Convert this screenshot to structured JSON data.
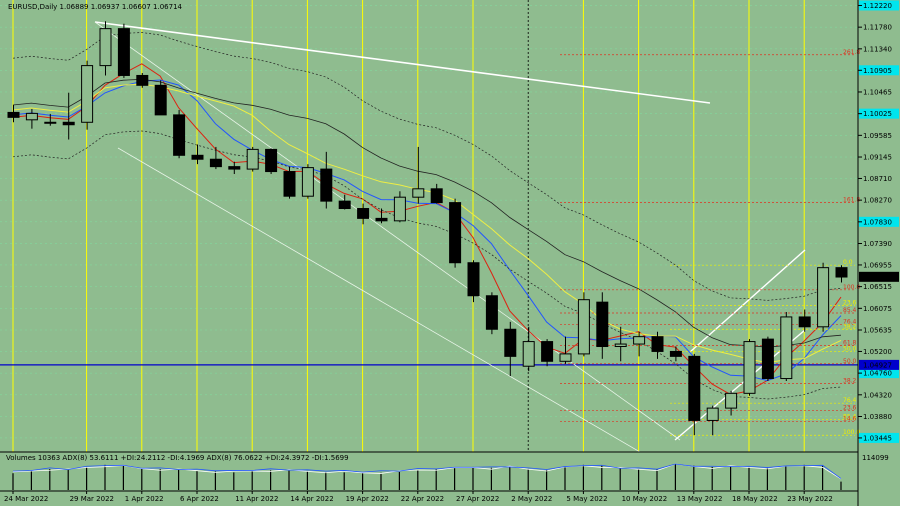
{
  "header": {
    "symbol_text": "EURUSD,Daily  1.06889 1.06937 1.06607 1.06714"
  },
  "volume_panel": {
    "label": "Volumes 10363  ADX(8) 53.6111 +DI:24.2112 -DI:4.1969  ADX(8) 76.0622 +DI:24.3972 -DI:1.5699",
    "top_value": "114099"
  },
  "colors": {
    "background": "#8fbc8f",
    "bull_candle": "#8fbc8f",
    "bear_candle": "#000000",
    "vertical_line": "#ffff00",
    "grid": "#7fe0a0",
    "highlight_label": "#00e5ee",
    "current_price_bg": "#000000",
    "horizontal_level": "#0000cc",
    "ma_blue": "#2255ff",
    "ma_red": "#dd2211",
    "ma_yellow": "#eeee44",
    "ma_black": "#222222",
    "fib_red": "#dd3322",
    "fib_yellow": "#eeee00",
    "trendline_white": "#ffffff"
  },
  "chart_data": {
    "type": "candlestick",
    "title": "EURUSD,Daily",
    "ohlc_header": [
      1.06889,
      1.06937,
      1.06607,
      1.06714
    ],
    "ylim": [
      1.032,
      1.1225
    ],
    "y_ticks": [
      "1.12220",
      "1.11780",
      "1.11340",
      "1.10905",
      "1.10465",
      "1.10025",
      "1.09585",
      "1.09145",
      "1.08710",
      "1.08270",
      "1.07830",
      "1.07390",
      "1.06955",
      "1.06515",
      "1.06075",
      "1.05635",
      "1.05200",
      "1.04760",
      "1.04320",
      "1.03880",
      "1.03445"
    ],
    "highlighted_ticks": [
      "1.12220",
      "1.10905",
      "1.10025",
      "1.07830",
      "1.04760",
      "1.03445"
    ],
    "current_price": "1.06714",
    "level_price": "1.04927",
    "x_labels": [
      "24 Mar 2022",
      "29 Mar 2022",
      "1 Apr 2022",
      "6 Apr 2022",
      "11 Apr 2022",
      "14 Apr 2022",
      "19 Apr 2022",
      "22 Apr 2022",
      "27 Apr 2022",
      "2 May 2022",
      "5 May 2022",
      "10 May 2022",
      "13 May 2022",
      "18 May 2022",
      "23 May 2022"
    ],
    "x_label_index": [
      0,
      4,
      7,
      10,
      13,
      16,
      19,
      22,
      25,
      28,
      31,
      34,
      37,
      40,
      43
    ],
    "candles": [
      {
        "o": 1.1005,
        "h": 1.102,
        "l": 1.0985,
        "c": 1.0995
      },
      {
        "o": 1.099,
        "h": 1.1012,
        "l": 1.0972,
        "c": 1.1003
      },
      {
        "o": 1.0985,
        "h": 1.1002,
        "l": 1.0978,
        "c": 1.0985
      },
      {
        "o": 1.0985,
        "h": 1.1045,
        "l": 1.095,
        "c": 1.098
      },
      {
        "o": 1.0985,
        "h": 1.111,
        "l": 1.097,
        "c": 1.11
      },
      {
        "o": 1.11,
        "h": 1.119,
        "l": 1.108,
        "c": 1.1175
      },
      {
        "o": 1.1175,
        "h": 1.1185,
        "l": 1.1075,
        "c": 1.108
      },
      {
        "o": 1.108,
        "h": 1.1085,
        "l": 1.1055,
        "c": 1.106
      },
      {
        "o": 1.106,
        "h": 1.107,
        "l": 1.1,
        "c": 1.1
      },
      {
        "o": 1.1,
        "h": 1.101,
        "l": 1.0912,
        "c": 1.0918
      },
      {
        "o": 1.0918,
        "h": 1.094,
        "l": 1.09,
        "c": 1.091
      },
      {
        "o": 1.091,
        "h": 1.0935,
        "l": 1.089,
        "c": 1.0895
      },
      {
        "o": 1.0895,
        "h": 1.0905,
        "l": 1.088,
        "c": 1.089
      },
      {
        "o": 1.089,
        "h": 1.0935,
        "l": 1.0885,
        "c": 1.093
      },
      {
        "o": 1.093,
        "h": 1.0932,
        "l": 1.088,
        "c": 1.0885
      },
      {
        "o": 1.0885,
        "h": 1.0895,
        "l": 1.083,
        "c": 1.0835
      },
      {
        "o": 1.0835,
        "h": 1.09,
        "l": 1.083,
        "c": 1.0893
      },
      {
        "o": 1.089,
        "h": 1.0925,
        "l": 1.081,
        "c": 1.0825
      },
      {
        "o": 1.0825,
        "h": 1.0838,
        "l": 1.0808,
        "c": 1.081
      },
      {
        "o": 1.081,
        "h": 1.082,
        "l": 1.0778,
        "c": 1.079
      },
      {
        "o": 1.079,
        "h": 1.081,
        "l": 1.078,
        "c": 1.0785
      },
      {
        "o": 1.0785,
        "h": 1.0845,
        "l": 1.0782,
        "c": 1.0833
      },
      {
        "o": 1.0833,
        "h": 1.0935,
        "l": 1.082,
        "c": 1.085
      },
      {
        "o": 1.085,
        "h": 1.086,
        "l": 1.082,
        "c": 1.0822
      },
      {
        "o": 1.0822,
        "h": 1.083,
        "l": 1.069,
        "c": 1.07
      },
      {
        "o": 1.07,
        "h": 1.0705,
        "l": 1.062,
        "c": 1.0633
      },
      {
        "o": 1.0633,
        "h": 1.064,
        "l": 1.0555,
        "c": 1.0565
      },
      {
        "o": 1.0565,
        "h": 1.058,
        "l": 1.047,
        "c": 1.051
      },
      {
        "o": 1.049,
        "h": 1.057,
        "l": 1.048,
        "c": 1.054
      },
      {
        "o": 1.054,
        "h": 1.0545,
        "l": 1.049,
        "c": 1.05
      },
      {
        "o": 1.05,
        "h": 1.055,
        "l": 1.0495,
        "c": 1.0515
      },
      {
        "o": 1.0515,
        "h": 1.064,
        "l": 1.051,
        "c": 1.0625
      },
      {
        "o": 1.062,
        "h": 1.064,
        "l": 1.0505,
        "c": 1.053
      },
      {
        "o": 1.053,
        "h": 1.057,
        "l": 1.05,
        "c": 1.0535
      },
      {
        "o": 1.0535,
        "h": 1.056,
        "l": 1.051,
        "c": 1.055
      },
      {
        "o": 1.055,
        "h": 1.056,
        "l": 1.0505,
        "c": 1.052
      },
      {
        "o": 1.052,
        "h": 1.053,
        "l": 1.05,
        "c": 1.051
      },
      {
        "o": 1.051,
        "h": 1.0515,
        "l": 1.035,
        "c": 1.038
      },
      {
        "o": 1.038,
        "h": 1.041,
        "l": 1.035,
        "c": 1.0405
      },
      {
        "o": 1.0405,
        "h": 1.044,
        "l": 1.039,
        "c": 1.0435
      },
      {
        "o": 1.0435,
        "h": 1.0545,
        "l": 1.043,
        "c": 1.054
      },
      {
        "o": 1.0545,
        "h": 1.055,
        "l": 1.046,
        "c": 1.0465
      },
      {
        "o": 1.0465,
        "h": 1.06,
        "l": 1.046,
        "c": 1.059
      },
      {
        "o": 1.059,
        "h": 1.0605,
        "l": 1.056,
        "c": 1.057
      },
      {
        "o": 1.057,
        "h": 1.07,
        "l": 1.056,
        "c": 1.069
      },
      {
        "o": 1.069,
        "h": 1.0695,
        "l": 1.066,
        "c": 1.0671
      }
    ],
    "volumes": [
      40,
      45,
      50,
      48,
      55,
      60,
      58,
      52,
      50,
      48,
      46,
      44,
      42,
      45,
      47,
      46,
      44,
      43,
      42,
      40,
      41,
      43,
      48,
      50,
      52,
      55,
      53,
      56,
      50,
      48,
      54,
      60,
      58,
      52,
      50,
      49,
      62,
      58,
      55,
      57,
      55,
      54,
      56,
      60,
      58,
      20
    ],
    "fib_levels": [
      {
        "label": "261.8",
        "price": 1.1122,
        "color": "red"
      },
      {
        "label": "161.8",
        "price": 1.0822,
        "color": "red"
      },
      {
        "label": "0.0",
        "price": 1.0695,
        "color": "yellow"
      },
      {
        "label": "100.0",
        "price": 1.0645,
        "color": "red"
      },
      {
        "label": "23.6",
        "price": 1.0613,
        "color": "yellow"
      },
      {
        "label": "85.4",
        "price": 1.0598,
        "color": "red"
      },
      {
        "label": "76.4",
        "price": 1.0575,
        "color": "red"
      },
      {
        "label": "38.2",
        "price": 1.0565,
        "color": "yellow"
      },
      {
        "label": "61.8",
        "price": 1.0532,
        "color": "red"
      },
      {
        "label": "50.0",
        "price": 1.052,
        "color": "yellow"
      },
      {
        "label": "50.0",
        "price": 1.0495,
        "color": "red"
      },
      {
        "label": "38.2",
        "price": 1.0455,
        "color": "red"
      },
      {
        "label": "76.4",
        "price": 1.0415,
        "color": "yellow"
      },
      {
        "label": "23.6",
        "price": 1.04,
        "color": "red"
      },
      {
        "label": "85.4",
        "price": 1.0382,
        "color": "yellow"
      },
      {
        "label": "14.6",
        "price": 1.0378,
        "color": "red"
      },
      {
        "label": "100.0",
        "price": 1.035,
        "color": "yellow"
      }
    ]
  }
}
